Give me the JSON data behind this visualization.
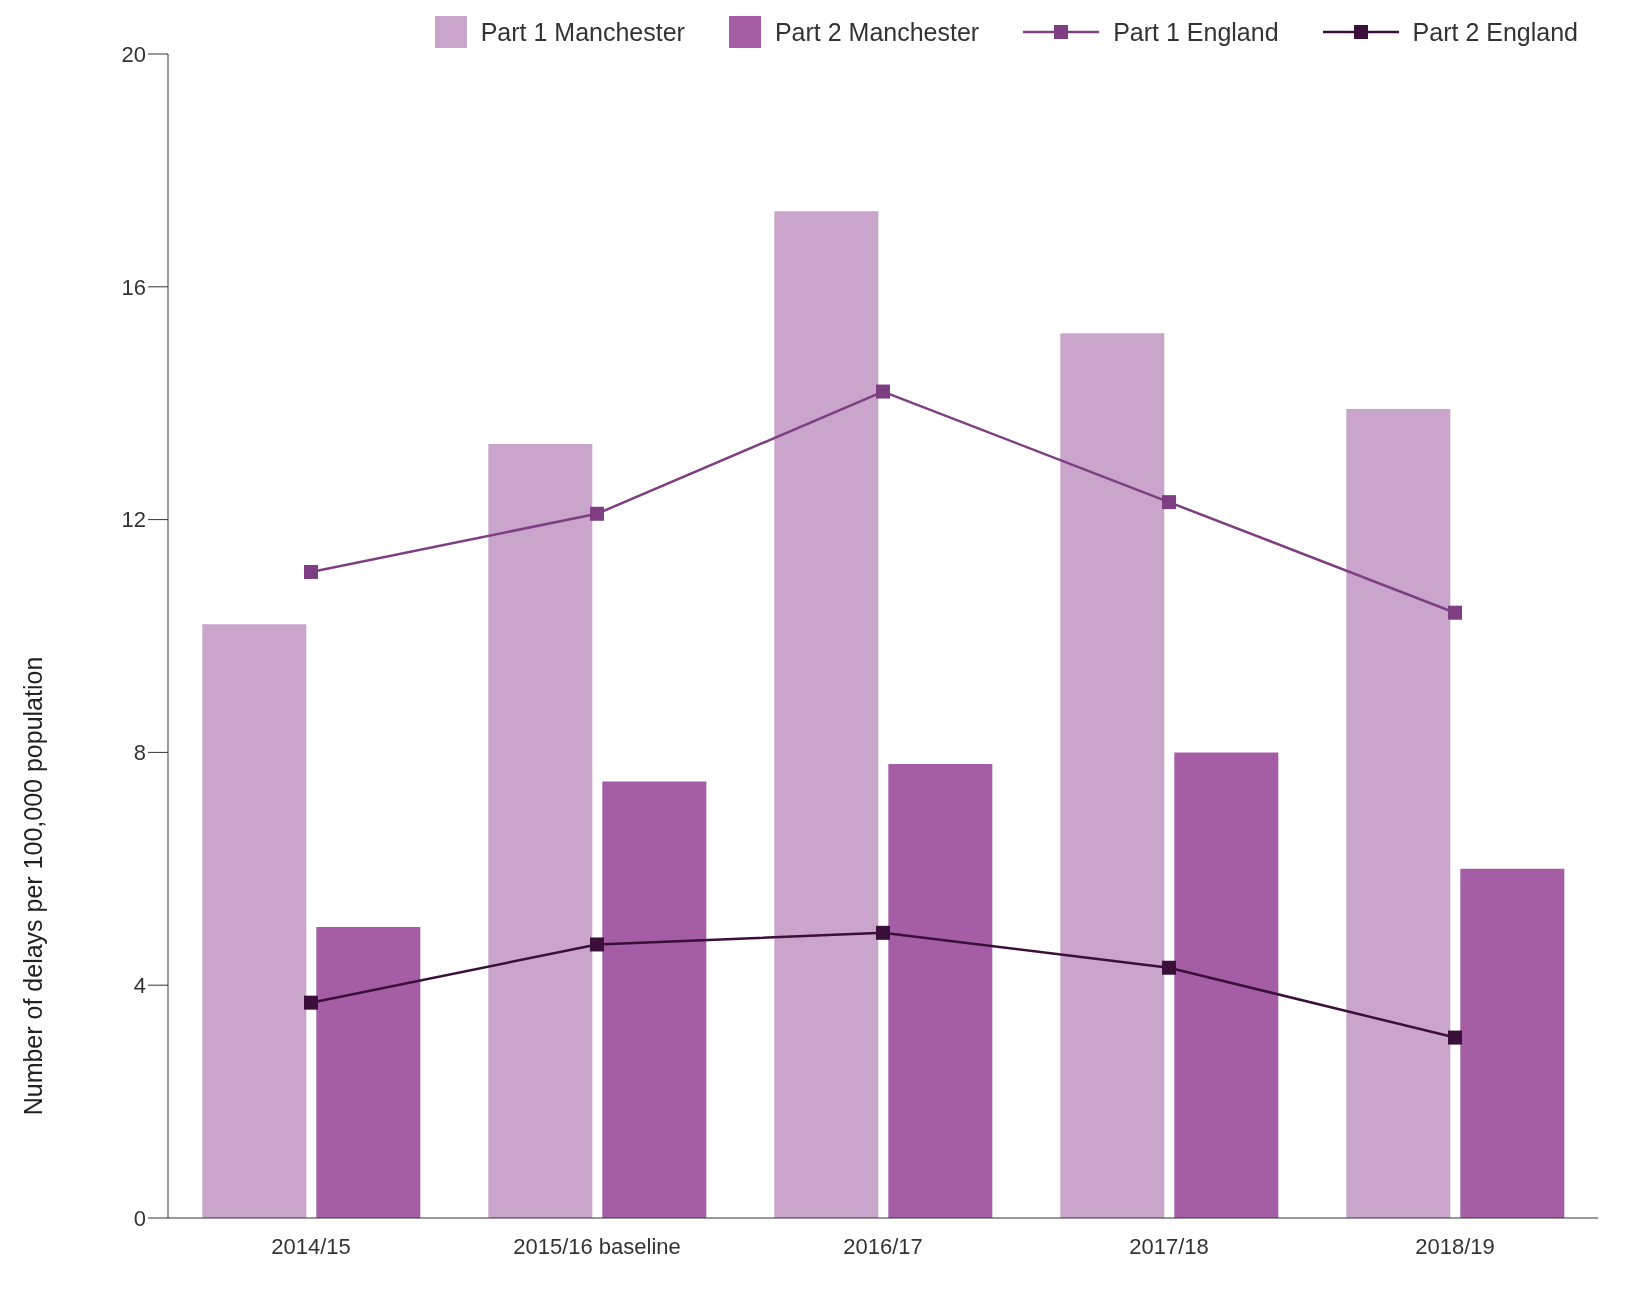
{
  "chart_data": {
    "type": "bar",
    "ylabel": "Number of delays per 100,000 population",
    "categories": [
      "2014/15",
      "2015/16 baseline",
      "2016/17",
      "2017/18",
      "2018/19"
    ],
    "series": [
      {
        "name": "Part 1 Manchester",
        "color": "#c9a5cc",
        "values": [
          10.2,
          13.3,
          17.3,
          15.2,
          13.9
        ]
      },
      {
        "name": "Part 2 Manchester",
        "color": "#a55ea6",
        "values": [
          5.0,
          7.5,
          7.8,
          8.0,
          6.0
        ]
      },
      {
        "name": "Part 1 England",
        "type": "line",
        "color": "#7e3f82",
        "values": [
          11.1,
          12.1,
          14.2,
          12.3,
          10.4
        ]
      },
      {
        "name": "Part 2 England",
        "type": "line",
        "color": "#3a0f3a",
        "values": [
          3.7,
          4.7,
          4.9,
          4.3,
          3.1
        ]
      }
    ],
    "ylim": [
      0,
      20
    ],
    "yticks": [
      0,
      4,
      8,
      12,
      16,
      20
    ],
    "grid": false,
    "legend": "top right",
    "marker": "square",
    "line_style": "solid"
  }
}
